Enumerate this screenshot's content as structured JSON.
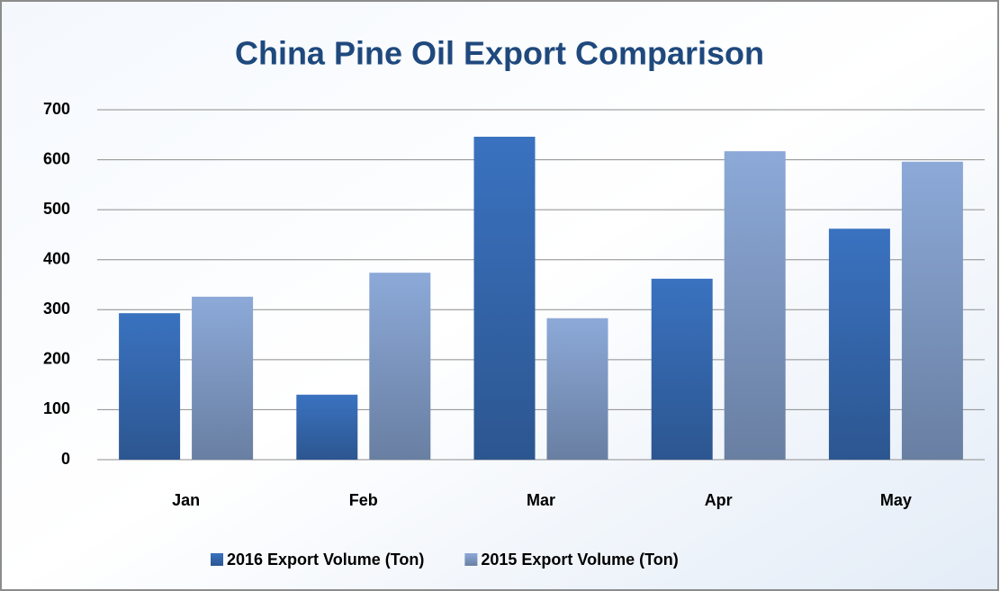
{
  "chart_data": {
    "type": "bar",
    "title": "China Pine Oil Export Comparison",
    "categories": [
      "Jan",
      "Feb",
      "Mar",
      "Apr",
      "May"
    ],
    "series": [
      {
        "name": "2016 Export Volume (Ton)",
        "color": "#3a72c0",
        "values": [
          293,
          130,
          646,
          362,
          462
        ]
      },
      {
        "name": "2015 Export Volume (Ton)",
        "color": "#8ca9d8",
        "values": [
          326,
          374,
          283,
          617,
          596
        ]
      }
    ],
    "ylim": [
      0,
      700
    ],
    "yticks": [
      0,
      100,
      200,
      300,
      400,
      500,
      600,
      700
    ],
    "grid": true,
    "legend": "bottom"
  }
}
